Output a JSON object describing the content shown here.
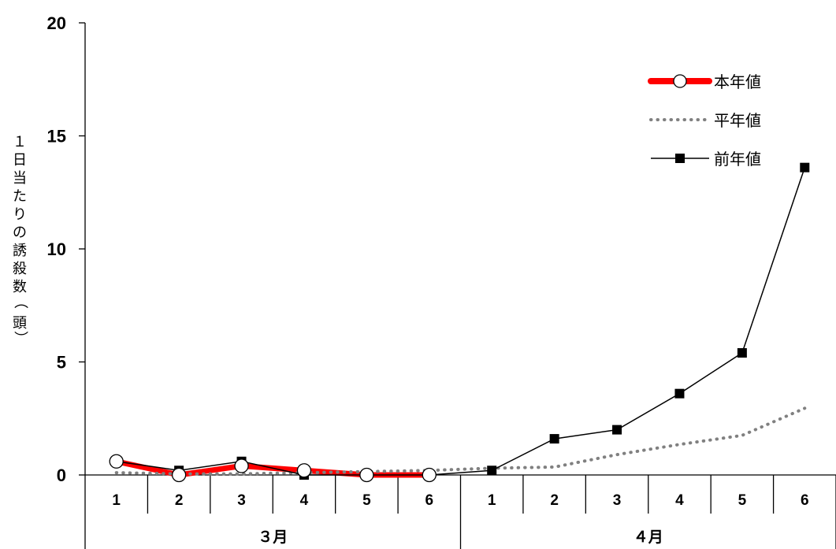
{
  "chart_data": {
    "type": "line",
    "ylabel": "１日当たりの誘殺数（頭）",
    "xlabel": "",
    "ylim": [
      0,
      20
    ],
    "yticks": [
      0,
      5,
      10,
      15,
      20
    ],
    "groups": [
      {
        "label": "３月",
        "categories": [
          "1",
          "2",
          "3",
          "4",
          "5",
          "6"
        ]
      },
      {
        "label": "４月",
        "categories": [
          "1",
          "2",
          "3",
          "4",
          "5",
          "6"
        ]
      }
    ],
    "legend_position": "top-right",
    "grid": false,
    "series": [
      {
        "name": "本年値",
        "color": "#ff0000",
        "style": "thick-line-open-circle",
        "values": [
          0.6,
          0.0,
          0.4,
          0.2,
          0.0,
          0.0,
          null,
          null,
          null,
          null,
          null,
          null
        ]
      },
      {
        "name": "平年値",
        "color": "#808080",
        "style": "dotted",
        "values": [
          0.1,
          0.05,
          0.05,
          0.1,
          0.15,
          0.2,
          0.3,
          0.35,
          0.9,
          1.35,
          1.75,
          2.95
        ]
      },
      {
        "name": "前年値",
        "color": "#000000",
        "style": "thin-line-square",
        "values": [
          0.6,
          0.2,
          0.6,
          0.0,
          0.0,
          0.0,
          0.2,
          1.6,
          2.0,
          3.6,
          5.4,
          13.6
        ]
      }
    ]
  }
}
